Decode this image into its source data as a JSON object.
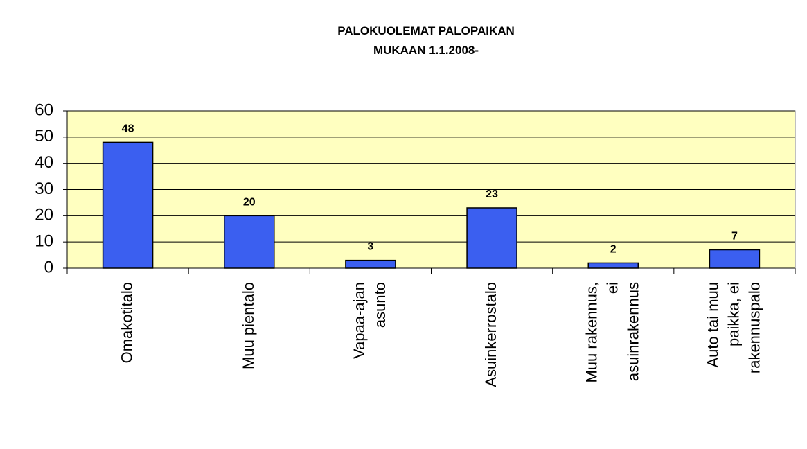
{
  "chart_data": {
    "type": "bar",
    "title": [
      "PALOKUOLEMAT PALOPAIKAN",
      "MUKAAN 1.1.2008-"
    ],
    "categories": [
      "Omakotitalo",
      "Muu pientalo",
      "Vapaa-ajan asunto",
      "Asuinkerrostalo",
      "Muu rakennus, ei asuinrakennus",
      "Auto tai muu paikka, ei rakennuspalo"
    ],
    "values": [
      48,
      20,
      3,
      23,
      2,
      7
    ],
    "color": "#3b5ff0",
    "plot_background": "#ffffc0",
    "ylim": [
      0,
      60
    ],
    "yticks": [
      0,
      10,
      20,
      30,
      40,
      50,
      60
    ],
    "grid": true
  }
}
